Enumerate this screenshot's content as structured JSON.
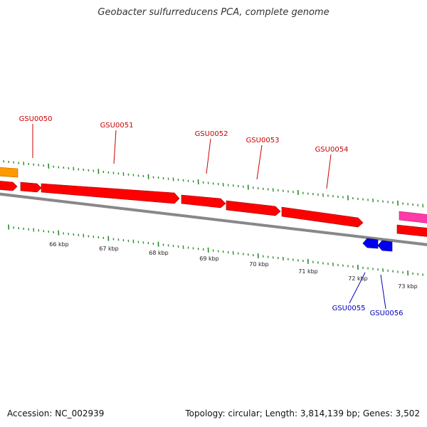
{
  "title": "Geobacter sulfurreducens PCA, complete genome",
  "footer": {
    "accession": "Accession: NC_002939",
    "summary": "Topology: circular; Length: 3,814,139 bp; Genes: 3,502"
  },
  "colors": {
    "forward_gene": "#ff0000",
    "reverse_gene": "#0000ee",
    "forward_label": "#cc0000",
    "reverse_label": "#0000bb",
    "partial_gene_orange": "#ff9900",
    "partial_gene_pink": "#ff3aa8",
    "backbone": "#888888",
    "tick": "#2a8a2a"
  },
  "genes": [
    {
      "id": "GSU0050",
      "strand": "forward"
    },
    {
      "id": "GSU0051",
      "strand": "forward"
    },
    {
      "id": "GSU0052",
      "strand": "forward"
    },
    {
      "id": "GSU0053",
      "strand": "forward"
    },
    {
      "id": "GSU0054",
      "strand": "forward"
    },
    {
      "id": "GSU0055",
      "strand": "reverse"
    },
    {
      "id": "GSU0056",
      "strand": "reverse"
    }
  ],
  "scale_labels": [
    "66 kbp",
    "67 kbp",
    "68 kbp",
    "69 kbp",
    "70 kbp",
    "71 kbp",
    "72 kbp",
    "73 kbp"
  ]
}
